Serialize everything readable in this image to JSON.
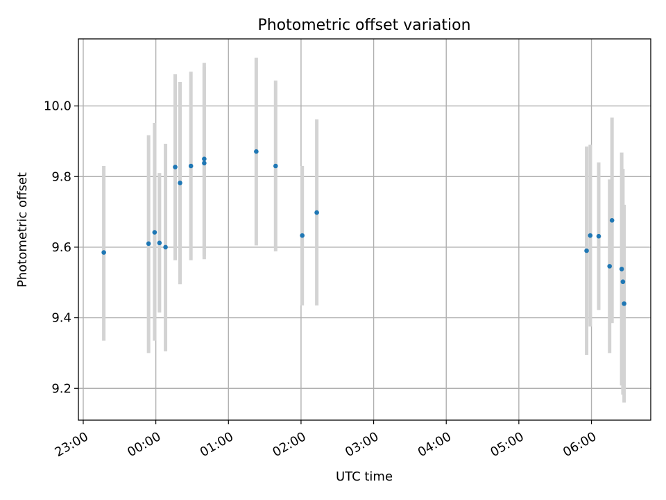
{
  "chart_data": {
    "type": "scatter",
    "title": "Photometric offset variation",
    "xlabel": "UTC time",
    "ylabel": "Photometric offset",
    "x_axis_kind": "time",
    "xlim": [
      "22:56",
      "06:49"
    ],
    "ylim": [
      9.11,
      10.19
    ],
    "x_ticks": [
      "23:00",
      "00:00",
      "01:00",
      "02:00",
      "03:00",
      "04:00",
      "05:00",
      "06:00"
    ],
    "y_ticks": [
      "9.2",
      "9.4",
      "9.6",
      "9.8",
      "10.0"
    ],
    "grid": true,
    "marker_color": "#1f77b4",
    "errorbar_color": "#d3d3d3",
    "points": [
      {
        "t": "23:17",
        "y": 9.585,
        "lo": 9.335,
        "hi": 9.83
      },
      {
        "t": "23:54",
        "y": 9.61,
        "lo": 9.3,
        "hi": 9.917
      },
      {
        "t": "23:59",
        "y": 9.642,
        "lo": 9.335,
        "hi": 9.952
      },
      {
        "t": "00:03",
        "y": 9.612,
        "lo": 9.415,
        "hi": 9.81
      },
      {
        "t": "00:08",
        "y": 9.6,
        "lo": 9.305,
        "hi": 9.893
      },
      {
        "t": "00:16",
        "y": 9.827,
        "lo": 9.563,
        "hi": 10.09
      },
      {
        "t": "00:20",
        "y": 9.782,
        "lo": 9.495,
        "hi": 10.068
      },
      {
        "t": "00:29",
        "y": 9.83,
        "lo": 9.563,
        "hi": 10.097
      },
      {
        "t": "00:40",
        "y": 9.838,
        "lo": 9.566,
        "hi": 10.11
      },
      {
        "t": "00:40",
        "y": 9.85,
        "lo": 9.575,
        "hi": 10.122
      },
      {
        "t": "01:23",
        "y": 9.871,
        "lo": 9.605,
        "hi": 10.137
      },
      {
        "t": "01:39",
        "y": 9.83,
        "lo": 9.588,
        "hi": 10.072
      },
      {
        "t": "02:01",
        "y": 9.633,
        "lo": 9.435,
        "hi": 9.83
      },
      {
        "t": "02:13",
        "y": 9.698,
        "lo": 9.435,
        "hi": 9.962
      },
      {
        "t": "05:56",
        "y": 9.59,
        "lo": 9.295,
        "hi": 9.885
      },
      {
        "t": "05:59",
        "y": 9.633,
        "lo": 9.375,
        "hi": 9.89
      },
      {
        "t": "06:06",
        "y": 9.631,
        "lo": 9.422,
        "hi": 9.84
      },
      {
        "t": "06:15",
        "y": 9.546,
        "lo": 9.3,
        "hi": 9.792
      },
      {
        "t": "06:17",
        "y": 9.676,
        "lo": 9.385,
        "hi": 9.967
      },
      {
        "t": "06:25",
        "y": 9.538,
        "lo": 9.208,
        "hi": 9.868
      },
      {
        "t": "06:26",
        "y": 9.502,
        "lo": 9.182,
        "hi": 9.822
      },
      {
        "t": "06:27",
        "y": 9.44,
        "lo": 9.16,
        "hi": 9.72
      }
    ]
  }
}
